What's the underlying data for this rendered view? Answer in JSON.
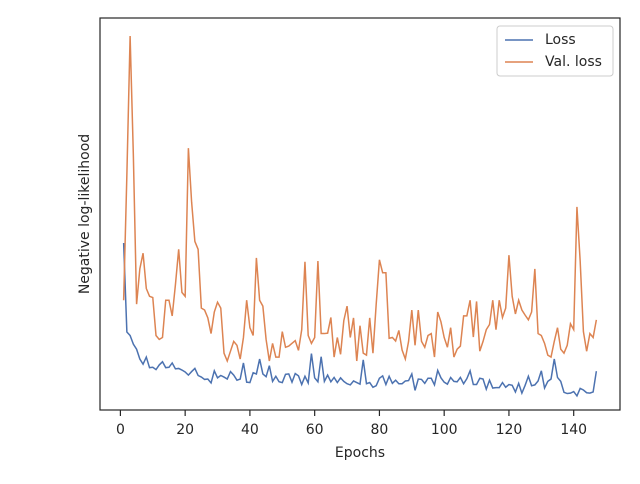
{
  "chart_data": {
    "type": "line",
    "xlabel": "Epochs",
    "ylabel": "Negative log-likelihood",
    "x": [
      1,
      2,
      3,
      4,
      5,
      6,
      7,
      8,
      9,
      10,
      11,
      12,
      13,
      14,
      15,
      16,
      17,
      18,
      19,
      20,
      21,
      22,
      23,
      24,
      25,
      26,
      27,
      28,
      29,
      30,
      31,
      32,
      33,
      34,
      35,
      36,
      37,
      38,
      39,
      40,
      41,
      42,
      43,
      44,
      45,
      46,
      47,
      48,
      49,
      50,
      51,
      52,
      53,
      54,
      55,
      56,
      57,
      58,
      59,
      60,
      61,
      62,
      63,
      64,
      65,
      66,
      67,
      68,
      69,
      70,
      71,
      72,
      73,
      74,
      75,
      76,
      77,
      78,
      79,
      80,
      81,
      82,
      83,
      84,
      85,
      86,
      87,
      88,
      89,
      90,
      91,
      92,
      93,
      94,
      95,
      96,
      97,
      98,
      99,
      100,
      101,
      102,
      103,
      104,
      105,
      106,
      107,
      108,
      109,
      110,
      111,
      112,
      113,
      114,
      115,
      116,
      117,
      118,
      119,
      120,
      121,
      122,
      123,
      124,
      125,
      126,
      127,
      128,
      129,
      130,
      131,
      132,
      133,
      134,
      135,
      136,
      137,
      138,
      139,
      140,
      141,
      142,
      143,
      144,
      145,
      146,
      147
    ],
    "series": [
      {
        "name": "Loss",
        "color": "#4c72b0",
        "values": [
          42.6,
          19.9,
          19,
          16.8,
          15.5,
          13,
          11.7,
          13.5,
          10.8,
          10.9,
          10.3,
          11.5,
          12.3,
          10.8,
          10.9,
          12,
          10.5,
          10.6,
          10.2,
          9.7,
          8.9,
          9.8,
          10.6,
          8.8,
          8.4,
          7.8,
          7.9,
          6.9,
          10,
          8.2,
          8.8,
          8.4,
          7.9,
          9.8,
          8.9,
          7.6,
          7.9,
          12,
          7.1,
          7,
          9.5,
          9.2,
          13,
          9.2,
          8.5,
          11.3,
          7.3,
          8.6,
          7.2,
          7,
          9.1,
          9.2,
          7.1,
          9.3,
          8.7,
          6.5,
          8.6,
          6.9,
          14.4,
          8.2,
          7.2,
          13.6,
          7.3,
          8.9,
          7.2,
          8.3,
          7,
          8.2,
          7.3,
          6.7,
          6.4,
          7.4,
          7,
          6.6,
          12.8,
          6.7,
          7,
          5.8,
          6.2,
          8.1,
          8.7,
          6.5,
          8.6,
          6.8,
          7.6,
          6.7,
          6.7,
          7.4,
          7.5,
          9.2,
          5,
          7.9,
          7.8,
          6.8,
          8.1,
          8.1,
          6.4,
          10.1,
          8.2,
          7.1,
          6.6,
          8.3,
          7.3,
          7.2,
          8.3,
          6.7,
          8,
          10,
          6.5,
          6.5,
          8.1,
          7.9,
          5.3,
          7.6,
          5.6,
          5.7,
          5.7,
          7,
          5.8,
          6.5,
          6.3,
          4.6,
          6.8,
          4.3,
          6.3,
          8.6,
          6.2,
          6.4,
          7.4,
          10,
          5.6,
          7.3,
          7.9,
          13,
          8.3,
          7.3,
          4.5,
          4.2,
          4.3,
          4.7,
          3.6,
          5.5,
          5.1,
          4.4,
          4.3,
          4.6,
          9.9
        ]
      },
      {
        "name": "Val. loss",
        "color": "#dd8452",
        "values": [
          28,
          60,
          95.4,
          65,
          27,
          36,
          40,
          31,
          29,
          28.7,
          19,
          18,
          18.5,
          28,
          28,
          24,
          32,
          41,
          30,
          29,
          66.8,
          53,
          43,
          41,
          26,
          25.5,
          23.5,
          19.5,
          25,
          27.5,
          26,
          14.5,
          12.5,
          15,
          17.5,
          16.5,
          13,
          18.5,
          28,
          21,
          19,
          38.8,
          28,
          26.5,
          18,
          12.5,
          17,
          13.5,
          13.5,
          20,
          16,
          16.3,
          17,
          17.7,
          15.2,
          20.5,
          37.8,
          19,
          17,
          18.5,
          38,
          19.5,
          19.5,
          19.6,
          23.6,
          13.5,
          18.5,
          14.2,
          22.8,
          26.5,
          18.5,
          23.5,
          12.5,
          21.5,
          14.5,
          14,
          23.5,
          14.5,
          27,
          38.3,
          35,
          35,
          18.3,
          18.5,
          17.6,
          20.3,
          15.3,
          13,
          17.5,
          25.5,
          16.5,
          25.5,
          17.5,
          16,
          19,
          19.5,
          13.5,
          25,
          22.5,
          18.5,
          16,
          21,
          13.5,
          15.5,
          16.3,
          24,
          24,
          28,
          18.6,
          27.7,
          15,
          17.5,
          20.5,
          21.8,
          28,
          20.5,
          28,
          23.6,
          26,
          39.5,
          29,
          24.5,
          28,
          25.5,
          24.2,
          23,
          25,
          36,
          19.5,
          19,
          17,
          14,
          13.5,
          17.5,
          21,
          15.5,
          14.5,
          16.5,
          22,
          20.5,
          51.8,
          38,
          20,
          15,
          19.5,
          18.5,
          23
        ]
      }
    ],
    "xlim": [
      -6.3,
      154.3
    ],
    "ylim": [
      0,
      100
    ],
    "xticks": [
      0,
      20,
      40,
      60,
      80,
      100,
      120,
      140
    ],
    "legend": "upper right",
    "grid": false
  }
}
